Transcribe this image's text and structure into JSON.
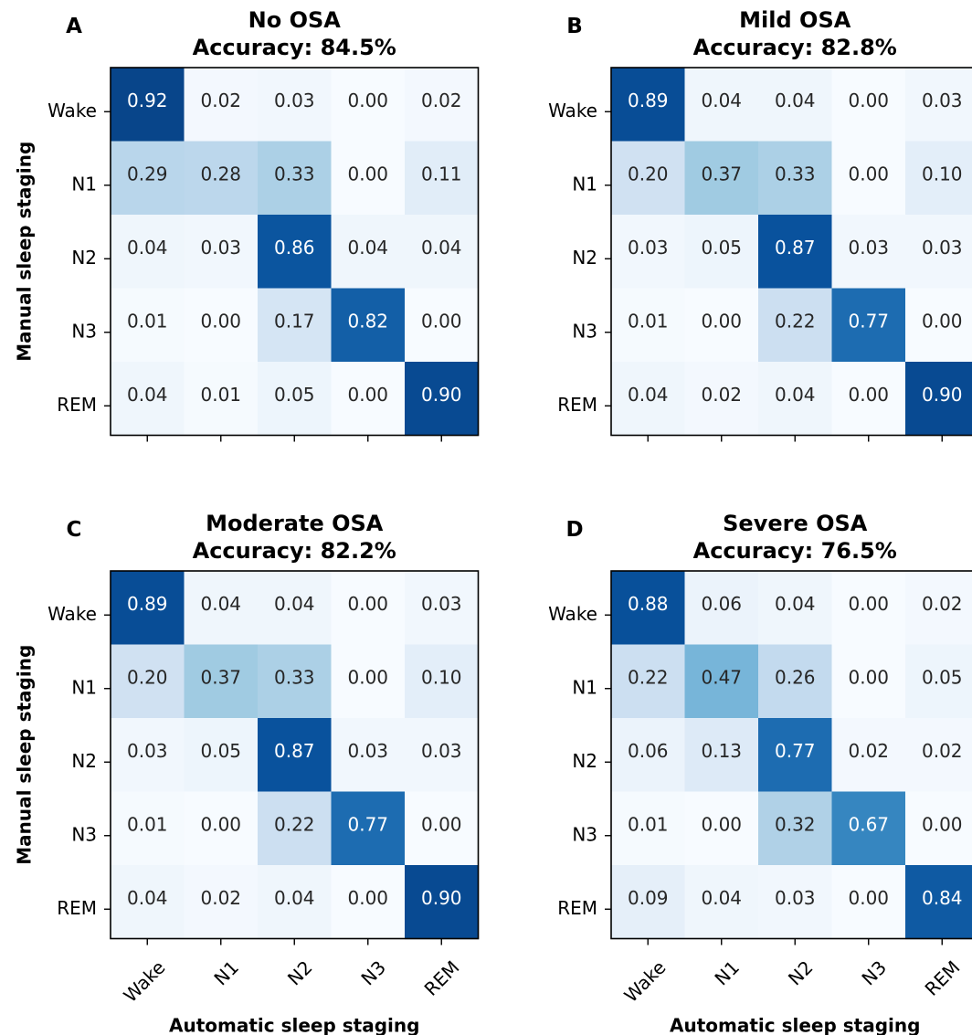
{
  "figure": {
    "ylabel": "Manual sleep staging",
    "xlabel": "Automatic sleep staging",
    "colormap": [
      "#f7fbff",
      "#deebf7",
      "#c6dbef",
      "#9ecae1",
      "#6baed6",
      "#4292c6",
      "#2171b5",
      "#08519c",
      "#08306b"
    ]
  },
  "chart_data": [
    {
      "type": "heatmap",
      "panel": "A",
      "title": "No OSA",
      "subtitle": "Accuracy: 84.5%",
      "rows": [
        "Wake",
        "N1",
        "N2",
        "N3",
        "REM"
      ],
      "columns": [
        "Wake",
        "N1",
        "N2",
        "N3",
        "REM"
      ],
      "values": [
        [
          0.92,
          0.02,
          0.03,
          0.0,
          0.02
        ],
        [
          0.29,
          0.28,
          0.33,
          0.0,
          0.11
        ],
        [
          0.04,
          0.03,
          0.86,
          0.04,
          0.04
        ],
        [
          0.01,
          0.0,
          0.17,
          0.82,
          0.0
        ],
        [
          0.04,
          0.01,
          0.05,
          0.0,
          0.9
        ]
      ]
    },
    {
      "type": "heatmap",
      "panel": "B",
      "title": "Mild OSA",
      "subtitle": "Accuracy: 82.8%",
      "rows": [
        "Wake",
        "N1",
        "N2",
        "N3",
        "REM"
      ],
      "columns": [
        "Wake",
        "N1",
        "N2",
        "N3",
        "REM"
      ],
      "values": [
        [
          0.89,
          0.04,
          0.04,
          0.0,
          0.03
        ],
        [
          0.2,
          0.37,
          0.33,
          0.0,
          0.1
        ],
        [
          0.03,
          0.05,
          0.87,
          0.03,
          0.03
        ],
        [
          0.01,
          0.0,
          0.22,
          0.77,
          0.0
        ],
        [
          0.04,
          0.02,
          0.04,
          0.0,
          0.9
        ]
      ]
    },
    {
      "type": "heatmap",
      "panel": "C",
      "title": "Moderate OSA",
      "subtitle": "Accuracy: 82.2%",
      "rows": [
        "Wake",
        "N1",
        "N2",
        "N3",
        "REM"
      ],
      "columns": [
        "Wake",
        "N1",
        "N2",
        "N3",
        "REM"
      ],
      "values": [
        [
          0.89,
          0.04,
          0.04,
          0.0,
          0.03
        ],
        [
          0.2,
          0.37,
          0.33,
          0.0,
          0.1
        ],
        [
          0.03,
          0.05,
          0.87,
          0.03,
          0.03
        ],
        [
          0.01,
          0.0,
          0.22,
          0.77,
          0.0
        ],
        [
          0.04,
          0.02,
          0.04,
          0.0,
          0.9
        ]
      ]
    },
    {
      "type": "heatmap",
      "panel": "D",
      "title": "Severe OSA",
      "subtitle": "Accuracy: 76.5%",
      "rows": [
        "Wake",
        "N1",
        "N2",
        "N3",
        "REM"
      ],
      "columns": [
        "Wake",
        "N1",
        "N2",
        "N3",
        "REM"
      ],
      "values": [
        [
          0.88,
          0.06,
          0.04,
          0.0,
          0.02
        ],
        [
          0.22,
          0.47,
          0.26,
          0.0,
          0.05
        ],
        [
          0.06,
          0.13,
          0.77,
          0.02,
          0.02
        ],
        [
          0.01,
          0.0,
          0.32,
          0.67,
          0.0
        ],
        [
          0.09,
          0.04,
          0.03,
          0.0,
          0.84
        ]
      ]
    }
  ]
}
